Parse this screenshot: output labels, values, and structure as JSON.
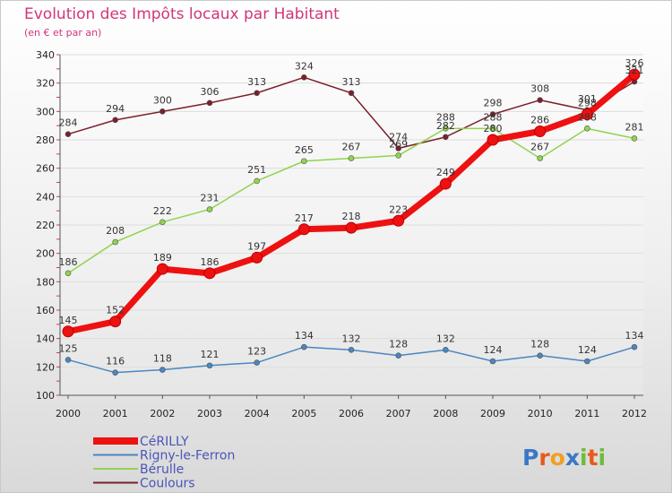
{
  "title": "Evolution des Impôts locaux par Habitant",
  "subtitle": "(en € et par an)",
  "chart_data": {
    "type": "line",
    "title": "Evolution des Impôts locaux par Habitant",
    "subtitle": "(en € et par an)",
    "x": [
      "2000",
      "2001",
      "2002",
      "2003",
      "2004",
      "2005",
      "2006",
      "2007",
      "2008",
      "2009",
      "2010",
      "2011",
      "2012"
    ],
    "ylim": [
      100,
      340
    ],
    "yticks": [
      100,
      120,
      140,
      160,
      180,
      200,
      220,
      240,
      260,
      280,
      300,
      320,
      340
    ],
    "grid": true,
    "legend_position": "bottom-left",
    "series": [
      {
        "name": "Coulours",
        "color": "#7b1f2a",
        "values": [
          284,
          294,
          300,
          306,
          313,
          324,
          313,
          274,
          282,
          298,
          308,
          301,
          321
        ]
      },
      {
        "name": "Bérulle",
        "color": "#8fd44f",
        "values": [
          186,
          208,
          222,
          231,
          251,
          265,
          267,
          269,
          288,
          288,
          267,
          288,
          281
        ]
      },
      {
        "name": "Rigny-le-Ferron",
        "color": "#4a86c0",
        "values": [
          125,
          116,
          118,
          121,
          123,
          134,
          132,
          128,
          132,
          124,
          128,
          124,
          134
        ]
      },
      {
        "name": "CéRILLY",
        "color": "#ee1111",
        "values": [
          145,
          152,
          189,
          186,
          197,
          217,
          218,
          223,
          249,
          280,
          286,
          298,
          326
        ]
      }
    ],
    "legend": [
      "CéRILLY",
      "Rigny-le-Ferron",
      "Bérulle",
      "Coulours"
    ]
  },
  "logo": {
    "text": "Proxiti",
    "letters": [
      "P",
      "r",
      "o",
      "x",
      "i",
      "t",
      "i"
    ]
  }
}
